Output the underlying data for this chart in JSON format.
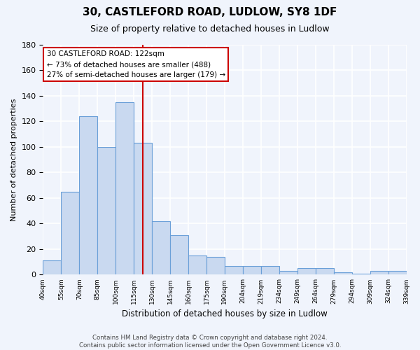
{
  "title1": "30, CASTLEFORD ROAD, LUDLOW, SY8 1DF",
  "title2": "Size of property relative to detached houses in Ludlow",
  "xlabel": "Distribution of detached houses by size in Ludlow",
  "ylabel": "Number of detached properties",
  "bar_labels": [
    "40sqm",
    "55sqm",
    "70sqm",
    "85sqm",
    "100sqm",
    "115sqm",
    "130sqm",
    "145sqm",
    "160sqm",
    "175sqm",
    "190sqm",
    "204sqm",
    "219sqm",
    "234sqm",
    "249sqm",
    "264sqm",
    "279sqm",
    "294sqm",
    "309sqm",
    "324sqm",
    "339sqm"
  ],
  "bar_values": [
    11,
    65,
    124,
    100,
    135,
    103,
    42,
    31,
    15,
    14,
    7,
    7,
    7,
    3,
    5,
    5,
    2,
    1,
    3,
    3
  ],
  "bar_color": "#c9d9f0",
  "bar_edge_color": "#6a9fd8",
  "background_color": "#f0f4fc",
  "grid_color": "#ffffff",
  "annotation_text": "30 CASTLEFORD ROAD: 122sqm\n← 73% of detached houses are smaller (488)\n27% of semi-detached houses are larger (179) →",
  "annotation_box_color": "#ffffff",
  "annotation_box_edge_color": "#cc0000",
  "vline_color": "#cc0000",
  "vline_x": 5.5,
  "ylim": [
    0,
    180
  ],
  "yticks": [
    0,
    20,
    40,
    60,
    80,
    100,
    120,
    140,
    160,
    180
  ],
  "footnote": "Contains HM Land Registry data © Crown copyright and database right 2024.\nContains public sector information licensed under the Open Government Licence v3.0."
}
